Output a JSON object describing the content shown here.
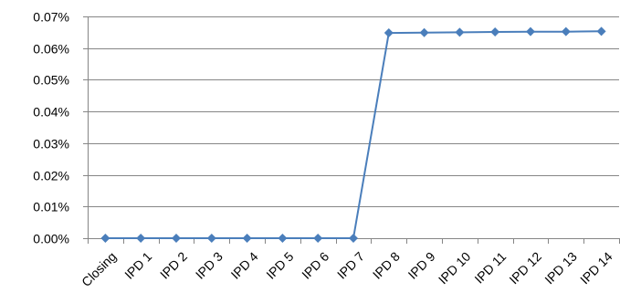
{
  "chart_data": {
    "type": "line",
    "title": "",
    "xlabel": "",
    "ylabel": "",
    "categories": [
      "Closing",
      "IPD 1",
      "IPD 2",
      "IPD 3",
      "IPD 4",
      "IPD 5",
      "IPD 6",
      "IPD 7",
      "IPD 8",
      "IPD 9",
      "IPD 10",
      "IPD 11",
      "IPD 12",
      "IPD 13",
      "IPD 14"
    ],
    "series": [
      {
        "values": [
          0.0,
          0.0,
          0.0,
          0.0,
          0.0,
          0.0,
          0.0,
          0.0,
          0.0648,
          0.0649,
          0.065,
          0.0651,
          0.0652,
          0.0652,
          0.0653
        ]
      }
    ],
    "ylim": [
      0,
      0.07
    ],
    "yticks": [
      0,
      0.01,
      0.02,
      0.03,
      0.04,
      0.05,
      0.06,
      0.07
    ],
    "ytick_labels": [
      "0.00%",
      "0.01%",
      "0.02%",
      "0.03%",
      "0.04%",
      "0.05%",
      "0.06%",
      "0.07%"
    ],
    "grid": "horizontal",
    "legend": "none",
    "colors": {
      "series": "#4a7ebb",
      "grid": "#868686",
      "axis": "#868686"
    }
  }
}
